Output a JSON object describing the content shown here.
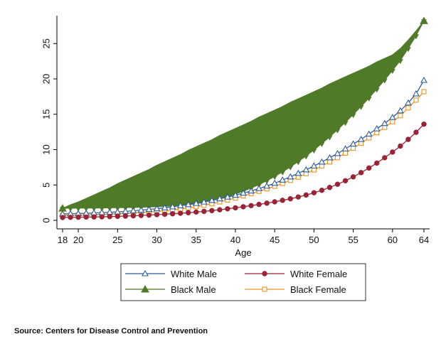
{
  "chart_data": {
    "type": "line",
    "xlabel": "Age",
    "ylabel": "",
    "xlim": [
      18,
      64
    ],
    "ylim": [
      0,
      28.5
    ],
    "xticks": [
      18,
      20,
      25,
      30,
      35,
      40,
      45,
      50,
      55,
      60,
      64
    ],
    "yticks": [
      0,
      5,
      10,
      15,
      20,
      25
    ],
    "grid": false,
    "legend_position": "bottom",
    "x": [
      18,
      19,
      20,
      21,
      22,
      23,
      24,
      25,
      26,
      27,
      28,
      29,
      30,
      31,
      32,
      33,
      34,
      35,
      36,
      37,
      38,
      39,
      40,
      41,
      42,
      43,
      44,
      45,
      46,
      47,
      48,
      49,
      50,
      51,
      52,
      53,
      54,
      55,
      56,
      57,
      58,
      59,
      60,
      61,
      62,
      63,
      64
    ],
    "series": [
      {
        "name": "White Male",
        "color": "#2e5d9c",
        "marker": "triangle-open",
        "values": [
          0.9,
          0.93,
          0.96,
          1.0,
          1.05,
          1.1,
          1.15,
          1.2,
          1.27,
          1.35,
          1.45,
          1.55,
          1.65,
          1.78,
          1.92,
          2.07,
          2.23,
          2.4,
          2.6,
          2.82,
          3.05,
          3.3,
          3.55,
          3.85,
          4.15,
          4.5,
          4.85,
          5.25,
          5.7,
          6.15,
          6.65,
          7.15,
          7.7,
          8.25,
          8.85,
          9.45,
          10.1,
          10.8,
          11.45,
          12.2,
          12.95,
          13.7,
          14.55,
          15.5,
          16.6,
          17.9,
          19.8
        ]
      },
      {
        "name": "White Female",
        "color": "#9b2335",
        "marker": "circle",
        "values": [
          0.4,
          0.42,
          0.44,
          0.46,
          0.48,
          0.5,
          0.53,
          0.56,
          0.6,
          0.64,
          0.69,
          0.74,
          0.8,
          0.86,
          0.93,
          1.0,
          1.08,
          1.17,
          1.27,
          1.38,
          1.5,
          1.63,
          1.77,
          1.92,
          2.08,
          2.25,
          2.43,
          2.62,
          2.83,
          3.05,
          3.3,
          3.58,
          3.9,
          4.25,
          4.65,
          5.1,
          5.6,
          6.15,
          6.75,
          7.4,
          8.1,
          8.85,
          9.65,
          10.5,
          11.45,
          12.45,
          13.6
        ]
      },
      {
        "name": "Black Male",
        "color": "#4f7a28",
        "marker": "triangle-filled",
        "values": [
          1.7,
          2.2,
          2.6,
          3.1,
          3.6,
          4.1,
          4.6,
          5.2,
          5.7,
          6.2,
          6.7,
          7.2,
          7.8,
          8.3,
          8.8,
          9.3,
          9.9,
          10.4,
          10.9,
          11.4,
          12.0,
          12.5,
          13.0,
          13.5,
          14.0,
          14.6,
          15.1,
          15.6,
          16.1,
          16.7,
          17.2,
          17.7,
          18.2,
          18.7,
          19.3,
          19.8,
          20.3,
          20.8,
          21.3,
          21.8,
          22.4,
          22.9,
          23.4,
          24.3,
          25.5,
          26.8,
          28.2
        ]
      },
      {
        "name": "Black Female",
        "color": "#f0921e",
        "marker": "square-open",
        "values": [
          0.7,
          0.72,
          0.75,
          0.78,
          0.81,
          0.85,
          0.89,
          0.93,
          0.98,
          1.04,
          1.1,
          1.17,
          1.25,
          1.35,
          1.46,
          1.6,
          1.75,
          1.93,
          2.12,
          2.35,
          2.6,
          2.87,
          3.15,
          3.45,
          3.77,
          4.1,
          4.45,
          4.82,
          5.22,
          5.65,
          6.1,
          6.6,
          7.12,
          7.67,
          8.25,
          8.85,
          9.5,
          10.2,
          10.9,
          11.65,
          12.4,
          13.15,
          13.95,
          14.8,
          15.9,
          17.0,
          18.2
        ]
      }
    ],
    "black_male_lower_envelope": [
      1.7,
      1.71,
      1.72,
      1.73,
      1.74,
      1.75,
      1.76,
      1.78,
      1.8,
      1.82,
      1.85,
      1.88,
      1.92,
      1.97,
      2.03,
      2.1,
      2.2,
      2.35,
      2.55,
      2.8,
      3.05,
      3.35,
      3.7,
      4.1,
      4.55,
      5.05,
      5.6,
      6.2,
      6.85,
      7.55,
      8.3,
      9.1,
      9.95,
      10.85,
      11.8,
      12.8,
      13.85,
      14.95,
      16.1,
      17.3,
      18.55,
      19.85,
      21.2,
      22.6,
      24.3,
      26.1,
      28.2
    ]
  },
  "source": "Source: Centers for Disease Control and Prevention"
}
